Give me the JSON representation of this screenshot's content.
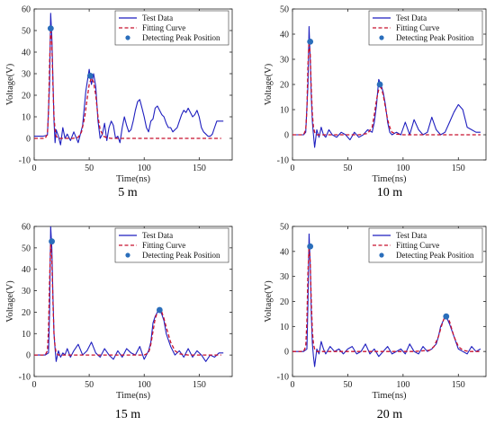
{
  "chart_data": [
    {
      "type": "line",
      "caption": "5 m",
      "xlabel": "Time(ns)",
      "ylabel": "Voltage(V)",
      "xlim": [
        0,
        180
      ],
      "ylim": [
        -10,
        60
      ],
      "xticks": [
        0,
        50,
        100,
        150
      ],
      "yticks": [
        -10,
        0,
        10,
        20,
        30,
        40,
        50,
        60
      ],
      "legend_position": "top-right",
      "series": [
        {
          "name": "Test Data",
          "style": "solid",
          "color": "#1f1fbf",
          "x": [
            0,
            4,
            8,
            12,
            14,
            15,
            16,
            17,
            18,
            19,
            20,
            22,
            24,
            26,
            28,
            30,
            33,
            36,
            40,
            44,
            47,
            50,
            52,
            54,
            56,
            58,
            60,
            62,
            64,
            66,
            68,
            70,
            72,
            74,
            76,
            78,
            80,
            82,
            84,
            86,
            88,
            90,
            92,
            94,
            96,
            98,
            100,
            102,
            104,
            106,
            108,
            110,
            112,
            114,
            116,
            118,
            120,
            122,
            124,
            126,
            128,
            130,
            132,
            134,
            136,
            138,
            140,
            142,
            144,
            146,
            148,
            150,
            152,
            154,
            156,
            158,
            160,
            162,
            164,
            166,
            168,
            170,
            172
          ],
          "y": [
            1,
            1,
            1,
            1.5,
            25,
            58,
            47,
            28,
            8,
            -2,
            4,
            1,
            -3,
            5,
            0,
            2,
            -1,
            3,
            -2,
            6,
            22,
            32,
            25,
            30,
            24,
            8,
            0,
            2,
            7,
            -1,
            5,
            8,
            6,
            0,
            1,
            -2,
            5,
            10,
            6,
            3,
            4,
            8,
            13,
            17,
            18,
            14,
            10,
            5,
            3,
            8,
            9,
            14,
            15,
            13,
            11,
            10,
            7,
            5,
            5,
            3,
            4,
            5,
            8,
            11,
            13,
            12,
            14,
            12,
            10,
            11,
            13,
            10,
            5,
            3,
            2,
            1,
            1,
            2,
            5,
            8,
            8,
            8,
            8
          ]
        },
        {
          "name": "Fitting Curve",
          "style": "dashed",
          "color": "#c8102e",
          "x": [
            0,
            10,
            12,
            13,
            14,
            15,
            16,
            17,
            18,
            19,
            20,
            22,
            25,
            30,
            35,
            40,
            43,
            46,
            48,
            50,
            52,
            54,
            56,
            58,
            60,
            63,
            66,
            70,
            80,
            100,
            120,
            140,
            160,
            170
          ],
          "y": [
            0,
            0,
            2,
            12,
            35,
            51,
            44,
            25,
            10,
            4,
            1,
            0,
            0,
            0,
            0,
            0.5,
            3,
            10,
            18,
            25,
            28,
            26,
            20,
            10,
            4,
            1,
            0.3,
            0,
            0,
            0,
            0,
            0,
            0,
            0
          ]
        },
        {
          "name": "Detecting Peak Position",
          "style": "marker",
          "color": "#2a6ebb",
          "x": [
            15,
            51
          ],
          "y": [
            51,
            29
          ]
        }
      ]
    },
    {
      "type": "line",
      "caption": "10 m",
      "xlabel": "Time(ns)",
      "ylabel": "Voltage(V)",
      "xlim": [
        0,
        175
      ],
      "ylim": [
        -10,
        50
      ],
      "xticks": [
        0,
        50,
        100,
        150
      ],
      "yticks": [
        -10,
        0,
        10,
        20,
        30,
        40,
        50
      ],
      "legend_position": "top-right",
      "series": [
        {
          "name": "Test Data",
          "style": "solid",
          "color": "#1f1fbf",
          "x": [
            0,
            5,
            10,
            12,
            14,
            15,
            16,
            17,
            18,
            19,
            20,
            22,
            24,
            26,
            28,
            30,
            33,
            36,
            40,
            44,
            48,
            52,
            56,
            60,
            64,
            68,
            72,
            74,
            76,
            78,
            80,
            82,
            84,
            86,
            88,
            90,
            94,
            98,
            102,
            106,
            110,
            114,
            118,
            122,
            126,
            130,
            134,
            138,
            142,
            146,
            150,
            154,
            158,
            162,
            166,
            170
          ],
          "y": [
            0,
            0,
            0,
            1,
            20,
            43,
            30,
            15,
            5,
            0,
            -5,
            2,
            -1,
            3,
            0,
            -1,
            2,
            0,
            -1,
            1,
            0,
            -2,
            1,
            -1,
            0,
            2,
            1,
            5,
            12,
            22,
            20,
            17,
            12,
            5,
            1,
            0,
            1,
            0,
            5,
            0,
            6,
            2,
            0,
            1,
            7,
            2,
            0,
            1,
            5,
            9,
            12,
            10,
            3,
            2,
            1,
            1
          ]
        },
        {
          "name": "Fitting Curve",
          "style": "dashed",
          "color": "#c8102e",
          "x": [
            0,
            10,
            12,
            13,
            14,
            15,
            16,
            17,
            18,
            19,
            20,
            22,
            25,
            30,
            40,
            50,
            60,
            68,
            72,
            74,
            76,
            78,
            80,
            82,
            84,
            86,
            88,
            90,
            94,
            100,
            120,
            140,
            160,
            170
          ],
          "y": [
            0,
            0,
            2,
            10,
            28,
            37,
            32,
            18,
            8,
            3,
            1,
            0,
            0,
            0,
            0,
            0,
            0,
            0.5,
            3,
            8,
            14,
            18,
            19,
            16,
            11,
            6,
            3,
            1,
            0.3,
            0,
            0,
            0,
            0,
            0
          ]
        },
        {
          "name": "Detecting Peak Position",
          "style": "marker",
          "color": "#2a6ebb",
          "x": [
            16,
            79
          ],
          "y": [
            37,
            20
          ]
        }
      ]
    },
    {
      "type": "line",
      "caption": "15 m",
      "xlabel": "Time(ns)",
      "ylabel": "Voltage(V)",
      "xlim": [
        0,
        180
      ],
      "ylim": [
        -10,
        60
      ],
      "xticks": [
        0,
        50,
        100,
        150
      ],
      "yticks": [
        -10,
        0,
        10,
        20,
        30,
        40,
        50,
        60
      ],
      "legend_position": "top-right",
      "series": [
        {
          "name": "Test Data",
          "style": "solid",
          "color": "#1f1fbf",
          "x": [
            0,
            5,
            10,
            13,
            14,
            15,
            16,
            17,
            18,
            19,
            20,
            22,
            24,
            26,
            28,
            30,
            33,
            36,
            40,
            44,
            48,
            52,
            56,
            60,
            64,
            68,
            72,
            76,
            80,
            84,
            88,
            92,
            96,
            100,
            104,
            106,
            108,
            110,
            112,
            114,
            116,
            118,
            120,
            124,
            128,
            132,
            136,
            140,
            144,
            148,
            152,
            156,
            160,
            164,
            168,
            172
          ],
          "y": [
            0,
            0,
            0,
            1,
            20,
            60,
            50,
            28,
            10,
            3,
            -3,
            2,
            -1,
            1,
            0,
            3,
            -1,
            2,
            5,
            0,
            2,
            6,
            1,
            -1,
            3,
            0,
            -2,
            2,
            -1,
            3,
            1,
            0,
            4,
            -2,
            2,
            6,
            15,
            18,
            20,
            21,
            19,
            16,
            10,
            4,
            0,
            2,
            -1,
            3,
            -1,
            2,
            0,
            -3,
            0,
            -1,
            1,
            1
          ]
        },
        {
          "name": "Fitting Curve",
          "style": "dashed",
          "color": "#c8102e",
          "x": [
            0,
            10,
            12,
            13,
            14,
            15,
            16,
            17,
            18,
            19,
            20,
            22,
            25,
            30,
            50,
            80,
            100,
            104,
            106,
            108,
            110,
            112,
            114,
            116,
            118,
            120,
            124,
            128,
            132,
            140,
            160,
            170
          ],
          "y": [
            0,
            0,
            2,
            12,
            35,
            52,
            45,
            25,
            10,
            4,
            1,
            0,
            0,
            0,
            0,
            0,
            0,
            1,
            5,
            11,
            17,
            20,
            21,
            20,
            17,
            13,
            6,
            2,
            0.5,
            0,
            0,
            0
          ]
        },
        {
          "name": "Detecting Peak Position",
          "style": "marker",
          "color": "#2a6ebb",
          "x": [
            16,
            114
          ],
          "y": [
            53,
            21
          ]
        }
      ]
    },
    {
      "type": "line",
      "caption": "20 m",
      "xlabel": "Time(ns)",
      "ylabel": "Voltage(V)",
      "xlim": [
        0,
        175
      ],
      "ylim": [
        -10,
        50
      ],
      "xticks": [
        0,
        50,
        100,
        150
      ],
      "yticks": [
        -10,
        0,
        10,
        20,
        30,
        40,
        50
      ],
      "legend_position": "top-right",
      "series": [
        {
          "name": "Test Data",
          "style": "solid",
          "color": "#1f1fbf",
          "x": [
            0,
            5,
            10,
            13,
            14,
            15,
            16,
            17,
            18,
            19,
            20,
            22,
            24,
            26,
            28,
            30,
            34,
            38,
            42,
            46,
            50,
            54,
            58,
            62,
            66,
            70,
            74,
            78,
            82,
            86,
            90,
            94,
            98,
            102,
            106,
            110,
            114,
            118,
            122,
            126,
            130,
            132,
            134,
            136,
            138,
            140,
            142,
            146,
            150,
            154,
            158,
            162,
            166,
            170
          ],
          "y": [
            0,
            0,
            0,
            1,
            20,
            47,
            35,
            15,
            3,
            -2,
            -6,
            1,
            -1,
            4,
            1,
            -1,
            2,
            0,
            1,
            -1,
            1,
            2,
            -1,
            0,
            3,
            -1,
            1,
            -2,
            0,
            2,
            -1,
            0,
            1,
            -1,
            3,
            0,
            -1,
            2,
            0,
            1,
            3,
            6,
            10,
            12,
            14,
            13,
            11,
            6,
            1,
            0,
            -1,
            2,
            0,
            1
          ]
        },
        {
          "name": "Fitting Curve",
          "style": "dashed",
          "color": "#c8102e",
          "x": [
            0,
            10,
            12,
            13,
            14,
            15,
            16,
            17,
            18,
            19,
            20,
            22,
            25,
            30,
            50,
            80,
            110,
            124,
            128,
            132,
            134,
            136,
            138,
            140,
            142,
            144,
            146,
            150,
            154,
            160,
            170
          ],
          "y": [
            0,
            0,
            2,
            12,
            32,
            42,
            36,
            20,
            8,
            3,
            1,
            0,
            0,
            0,
            0,
            0,
            0,
            0.5,
            2,
            6,
            9,
            12,
            14,
            14,
            12,
            9,
            6,
            2,
            0.5,
            0,
            0
          ]
        },
        {
          "name": "Detecting Peak Position",
          "style": "marker",
          "color": "#2a6ebb",
          "x": [
            16,
            139
          ],
          "y": [
            42,
            14
          ]
        }
      ]
    }
  ]
}
